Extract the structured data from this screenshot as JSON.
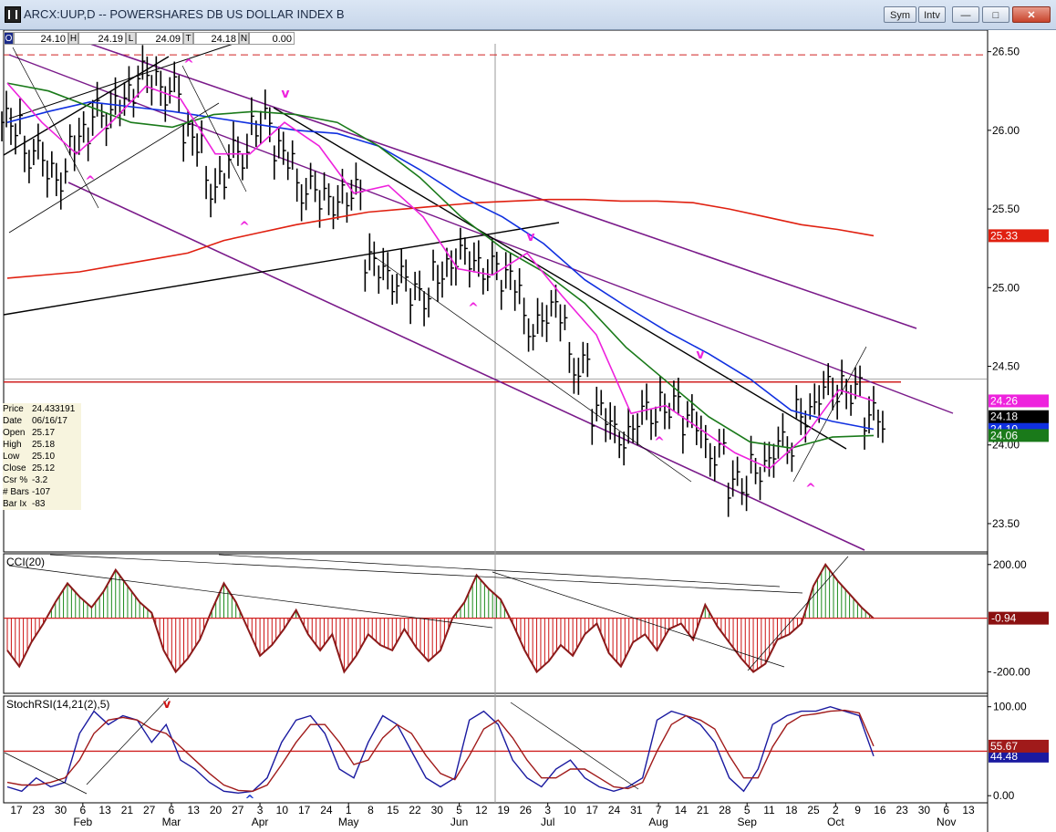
{
  "window": {
    "title": "ARCX:UUP,D -- POWERSHARES DB US DOLLAR INDEX B",
    "buttons": [
      "Sym",
      "Intv"
    ],
    "controls": [
      "—",
      "□",
      "✕"
    ]
  },
  "ohlc": {
    "open_label": "O",
    "open": "24.10",
    "high_label": "H",
    "high": "24.19",
    "low_label": "L",
    "low": "24.09",
    "t_label": "T",
    "t": "24.18",
    "n_label": "N",
    "n": "0.00"
  },
  "info": [
    {
      "label": "Price",
      "value": "24.433191"
    },
    {
      "label": "Date",
      "value": "06/16/17"
    },
    {
      "label": "Open",
      "value": "25.17"
    },
    {
      "label": "High",
      "value": "25.18"
    },
    {
      "label": "Low",
      "value": "25.10"
    },
    {
      "label": "Close",
      "value": "25.12"
    },
    {
      "label": "Csr %",
      "value": "-3.2"
    },
    {
      "label": "# Bars",
      "value": "-107"
    },
    {
      "label": "Bar Ix",
      "value": "-83"
    }
  ],
  "colors": {
    "ma_red": "#e02010",
    "ma_blue": "#1030e0",
    "ma_green": "#1a7a1a",
    "ma_magenta": "#ee22dd",
    "channel": "#7a1a8a",
    "cci_green": "#1a8a1a",
    "cci_red": "#cc1111",
    "cci_line": "#8b1a1a",
    "rsi_blue": "#1a1aa0",
    "rsi_red": "#a01a1a"
  },
  "chart_data": [
    {
      "type": "line",
      "panel": "price",
      "y_ticks": [
        "26.50",
        "26.00",
        "25.50",
        "25.00",
        "24.50",
        "24.00",
        "23.50"
      ],
      "ylim": [
        23.32,
        26.55
      ],
      "reference_levels": [
        26.48,
        24.4
      ],
      "price_bars": {
        "dates": [
          "01/20",
          "01/27",
          "02/03",
          "02/10",
          "02/17",
          "02/24",
          "03/03",
          "03/10",
          "03/17",
          "03/24",
          "03/31",
          "04/07",
          "04/14",
          "04/21",
          "04/28",
          "05/05",
          "05/12",
          "05/19",
          "05/26",
          "06/02",
          "06/09",
          "06/16",
          "06/23",
          "06/30",
          "07/07",
          "07/14",
          "07/21",
          "07/28",
          "08/04",
          "08/11",
          "08/18",
          "08/25",
          "09/01",
          "09/08",
          "09/15",
          "09/22",
          "09/29",
          "10/06",
          "10/13"
        ],
        "close": [
          26.05,
          25.85,
          25.7,
          25.95,
          26.1,
          26.2,
          26.35,
          26.25,
          25.95,
          25.65,
          25.85,
          26.05,
          25.85,
          25.62,
          25.55,
          25.6,
          25.15,
          25.05,
          24.95,
          25.1,
          25.2,
          25.12,
          25.05,
          24.75,
          24.85,
          24.5,
          24.2,
          24.05,
          24.2,
          24.25,
          24.15,
          23.95,
          23.75,
          23.85,
          24.0,
          24.2,
          24.35,
          24.35,
          24.18
        ]
      },
      "series_lines": [
        {
          "color": "#e02010",
          "label": "25.33",
          "values": [
            25.06,
            25.08,
            25.1,
            25.14,
            25.18,
            25.22,
            25.3,
            25.35,
            25.4,
            25.44,
            25.48,
            25.5,
            25.52,
            25.54,
            25.55,
            25.56,
            25.56,
            25.55,
            25.55,
            25.54,
            25.5,
            25.45,
            25.4,
            25.37,
            25.33
          ]
        },
        {
          "color": "#1030e0",
          "label": "24.10",
          "values": [
            26.05,
            26.12,
            26.18,
            26.15,
            26.12,
            26.08,
            26.04,
            26.0,
            25.98,
            25.9,
            25.75,
            25.58,
            25.45,
            25.28,
            25.05,
            24.88,
            24.72,
            24.58,
            24.42,
            24.22,
            24.15,
            24.1
          ]
        },
        {
          "color": "#1a7a1a",
          "label": "24.06",
          "values": [
            26.3,
            26.25,
            26.15,
            26.05,
            26.02,
            26.1,
            26.12,
            26.1,
            26.05,
            25.9,
            25.7,
            25.45,
            25.25,
            25.1,
            24.9,
            24.62,
            24.4,
            24.18,
            24.02,
            23.98,
            24.05,
            24.06
          ]
        },
        {
          "color": "#ee22dd",
          "label": "24.26",
          "values": [
            26.3,
            26.05,
            25.85,
            26.05,
            26.28,
            26.2,
            25.85,
            25.85,
            26.05,
            25.9,
            25.6,
            25.65,
            25.45,
            25.12,
            25.08,
            25.22,
            24.95,
            24.7,
            24.2,
            24.25,
            24.1,
            23.95,
            23.85,
            24.05,
            24.35,
            24.28
          ]
        }
      ],
      "markers": [
        "^",
        "^",
        "^",
        "^",
        "^",
        "^",
        "v",
        "v",
        "v",
        "v"
      ]
    },
    {
      "type": "area",
      "panel": "indicator",
      "title": "CCI(20)",
      "y_ticks": [
        "200.00",
        "-200.00"
      ],
      "ylim": [
        -280,
        240
      ],
      "last_value": "-0.94",
      "values": [
        -120,
        -180,
        -90,
        -20,
        60,
        130,
        80,
        40,
        100,
        180,
        120,
        60,
        20,
        -120,
        -200,
        -150,
        -80,
        30,
        130,
        60,
        -40,
        -140,
        -100,
        -40,
        30,
        -60,
        -120,
        -60,
        -200,
        -140,
        -60,
        -100,
        -120,
        -40,
        -110,
        -160,
        -120,
        0,
        60,
        160,
        110,
        70,
        -20,
        -120,
        -200,
        -160,
        -100,
        -140,
        -60,
        -20,
        -130,
        -180,
        -90,
        -60,
        -120,
        -40,
        -20,
        -80,
        50,
        -30,
        -90,
        -150,
        -200,
        -170,
        -80,
        -60,
        -20,
        120,
        200,
        140,
        90,
        40,
        -0.94
      ]
    },
    {
      "type": "line",
      "panel": "indicator",
      "title": "StochRSI(14,21(2),5)",
      "y_ticks": [
        "100.00",
        "0.00"
      ],
      "ylim": [
        0,
        100
      ],
      "reference_levels": [
        50
      ],
      "series": [
        {
          "name": "",
          "color": "#1a1aa0",
          "label": "44.48",
          "values": [
            10,
            5,
            20,
            10,
            15,
            70,
            95,
            80,
            90,
            85,
            60,
            80,
            40,
            30,
            15,
            5,
            3,
            5,
            20,
            60,
            85,
            90,
            70,
            30,
            20,
            60,
            90,
            80,
            50,
            20,
            10,
            20,
            85,
            95,
            80,
            40,
            20,
            10,
            30,
            40,
            20,
            10,
            5,
            10,
            20,
            85,
            95,
            90,
            80,
            60,
            20,
            5,
            30,
            80,
            90,
            95,
            95,
            100,
            95,
            90,
            44.48
          ]
        },
        {
          "name": "",
          "color": "#a01a1a",
          "label": "55.67",
          "values": [
            15,
            12,
            12,
            15,
            20,
            40,
            70,
            85,
            88,
            85,
            75,
            70,
            55,
            40,
            25,
            12,
            6,
            5,
            12,
            35,
            60,
            80,
            80,
            60,
            35,
            40,
            65,
            80,
            70,
            45,
            25,
            18,
            45,
            75,
            85,
            65,
            40,
            20,
            20,
            30,
            30,
            20,
            10,
            8,
            15,
            50,
            80,
            90,
            85,
            75,
            45,
            20,
            20,
            55,
            80,
            90,
            92,
            95,
            96,
            93,
            55.67
          ]
        }
      ]
    }
  ],
  "x_axis": {
    "day_ticks": [
      "17",
      "23",
      "30",
      "6",
      "13",
      "21",
      "27",
      "6",
      "13",
      "20",
      "27",
      "3",
      "10",
      "17",
      "24",
      "1",
      "8",
      "15",
      "22",
      "30",
      "5",
      "12",
      "19",
      "26",
      "3",
      "10",
      "17",
      "24",
      "31",
      "7",
      "14",
      "21",
      "28",
      "5",
      "11",
      "18",
      "25",
      "2",
      "9",
      "16",
      "23",
      "30",
      "6",
      "13"
    ],
    "months": [
      "Feb",
      "Mar",
      "Apr",
      "May",
      "Jun",
      "Jul",
      "Aug",
      "Sep",
      "Oct",
      "Nov"
    ]
  }
}
